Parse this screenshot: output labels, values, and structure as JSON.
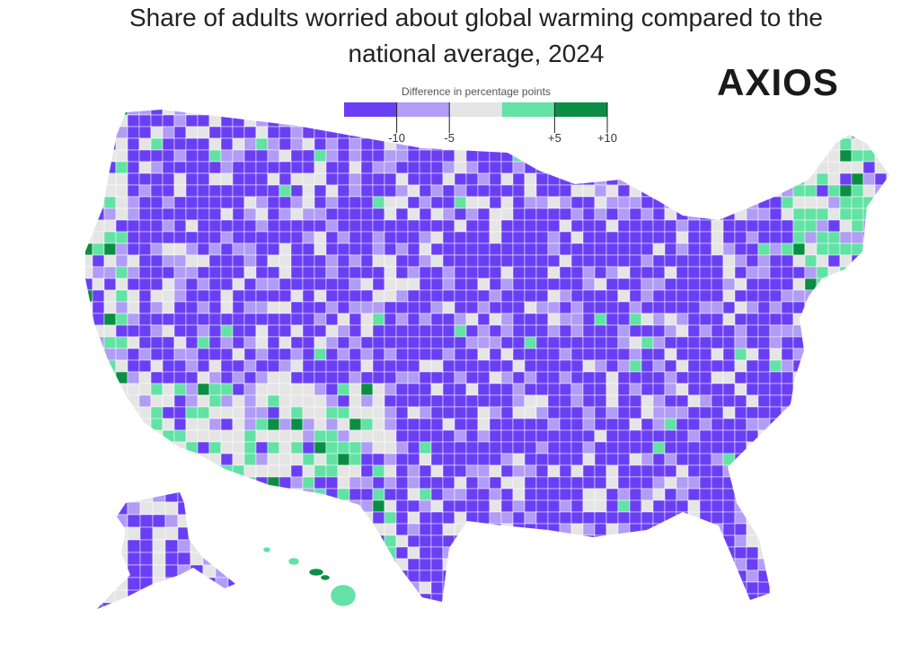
{
  "title_lines": [
    "Share of adults worried about global warming compared to the",
    "national average, 2024"
  ],
  "logo": "AXIOS",
  "legend": {
    "title": "Difference in percentage points",
    "colors": [
      "#6a3ff4",
      "#b19cf6",
      "#e5e5e5",
      "#62e2a4",
      "#0b8e44"
    ],
    "ticks": [
      -10,
      -5,
      {
        "value": 5,
        "label": "+5"
      },
      {
        "value": 10,
        "label": "+10"
      }
    ]
  }
}
